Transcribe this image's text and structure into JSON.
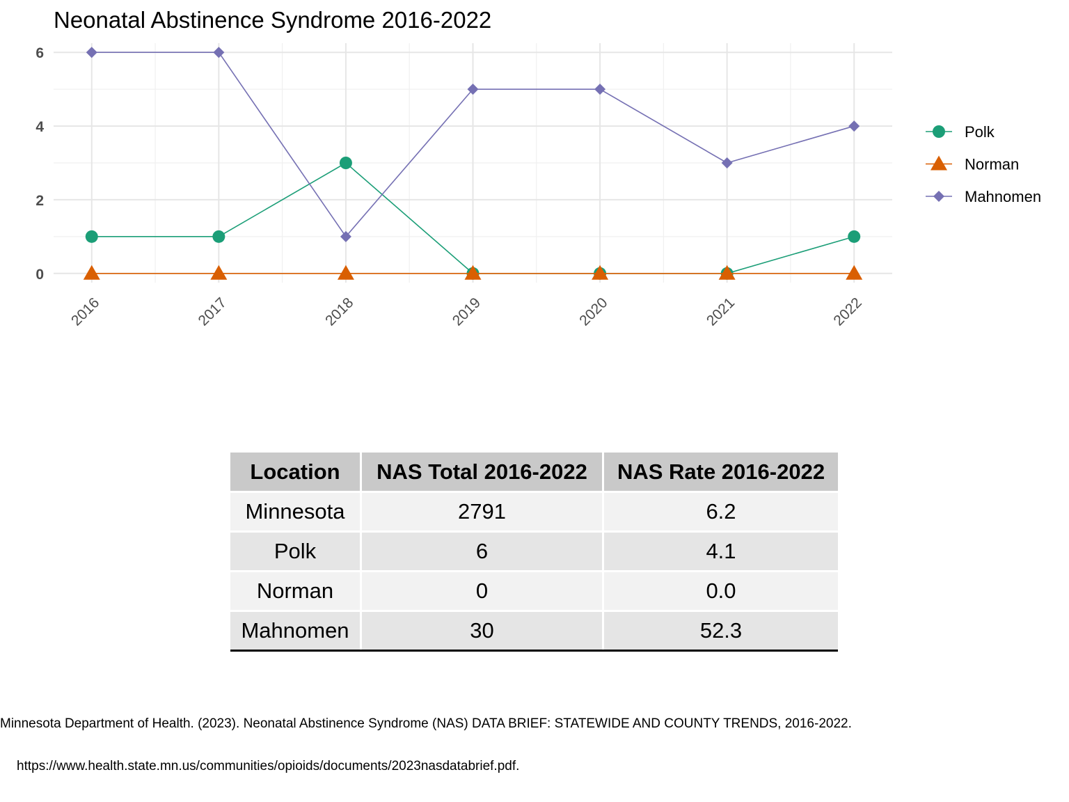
{
  "chart_data": {
    "type": "line",
    "title": "Neonatal Abstinence Syndrome 2016-2022",
    "xlabel": "",
    "ylabel": "",
    "x": [
      2016,
      2017,
      2018,
      2019,
      2020,
      2021,
      2022
    ],
    "x_tick_labels": [
      "2016",
      "2017",
      "2018",
      "2019",
      "2020",
      "2021",
      "2022"
    ],
    "y_ticks": [
      0,
      2,
      4,
      6
    ],
    "y_tick_labels": [
      "0",
      "2",
      "4",
      "6"
    ],
    "ylim": [
      -0.25,
      6.25
    ],
    "grid": true,
    "legend_position": "right",
    "series": [
      {
        "name": "Polk",
        "values": [
          1,
          1,
          3,
          0,
          0,
          0,
          1
        ],
        "color": "#1b9e77",
        "marker": "circle"
      },
      {
        "name": "Norman",
        "values": [
          0,
          0,
          0,
          0,
          0,
          0,
          0
        ],
        "color": "#d95f02",
        "marker": "triangle"
      },
      {
        "name": "Mahnomen",
        "values": [
          6,
          6,
          1,
          5,
          5,
          3,
          4
        ],
        "color": "#7570b3",
        "marker": "diamond"
      }
    ]
  },
  "table": {
    "headers": [
      "Location",
      "NAS Total 2016-2022",
      "NAS Rate 2016-2022"
    ],
    "rows": [
      [
        "Minnesota",
        "2791",
        "6.2"
      ],
      [
        "Polk",
        "6",
        "4.1"
      ],
      [
        "Norman",
        "0",
        "0.0"
      ],
      [
        "Mahnomen",
        "30",
        "52.3"
      ]
    ]
  },
  "source": {
    "line1": "Minnesota Department of Health. (2023). Neonatal Abstinence Syndrome (NAS) DATA BRIEF: STATEWIDE AND COUNTY TRENDS, 2016-2022.",
    "line2": "https://www.health.state.mn.us/communities/opioids/documents/2023nasdatabrief.pdf."
  }
}
